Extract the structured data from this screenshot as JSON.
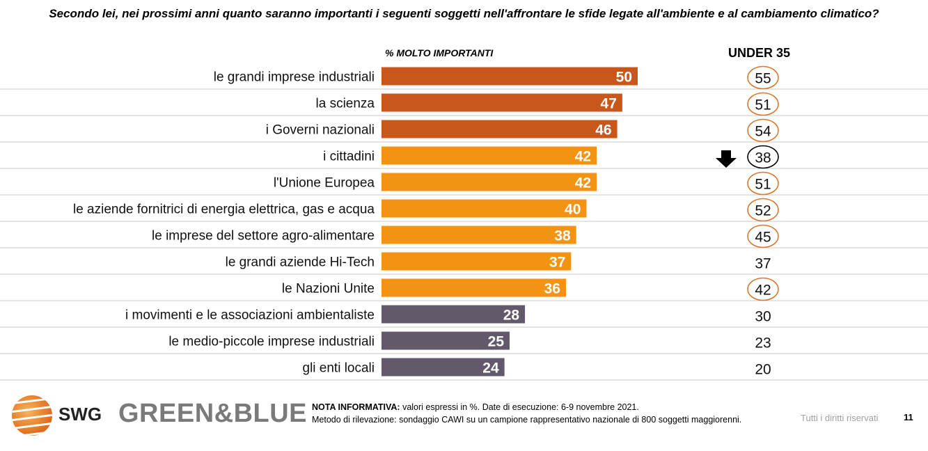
{
  "question": "Secondo lei, nei prossimi anni quanto saranno importanti i seguenti soggetti nell'affrontare le sfide legate all'ambiente e al cambiamento climatico?",
  "column_header": "% MOLTO IMPORTANTI",
  "under_header": "UNDER 35",
  "colors": {
    "top_group": "#C8571B",
    "middle_group": "#F39314",
    "bottom_group": "#625A6B",
    "circle_orange": "#D8772D",
    "circle_black": "#000000",
    "row_separator": "#C8C8C8"
  },
  "chart_data": {
    "type": "bar",
    "orientation": "horizontal",
    "title": "Secondo lei, nei prossimi anni quanto saranno importanti i seguenti soggetti nell'affrontare le sfide legate all'ambiente e al cambiamento climatico?",
    "categories": [
      "le grandi imprese industriali",
      "la scienza",
      "i Governi nazionali",
      "i cittadini",
      "l'Unione Europea",
      "le aziende fornitrici di energia elettrica, gas e acqua",
      "le imprese del settore agro-alimentare",
      "le grandi aziende Hi-Tech",
      "le Nazioni Unite",
      "i movimenti e le associazioni ambientaliste",
      "le medio-piccole imprese industriali",
      "gli enti locali"
    ],
    "series": [
      {
        "name": "% MOLTO IMPORTANTI",
        "values": [
          50,
          47,
          46,
          42,
          42,
          40,
          38,
          37,
          36,
          28,
          25,
          24
        ],
        "groups": [
          "top",
          "top",
          "top",
          "middle",
          "middle",
          "middle",
          "middle",
          "middle",
          "middle",
          "bottom",
          "bottom",
          "bottom"
        ]
      },
      {
        "name": "UNDER 35",
        "values": [
          55,
          51,
          54,
          38,
          51,
          52,
          45,
          37,
          42,
          30,
          23,
          20
        ],
        "marker": [
          "circle-orange",
          "circle-orange",
          "circle-orange",
          "circle-black",
          "circle-orange",
          "circle-orange",
          "circle-orange",
          "none",
          "circle-orange",
          "none",
          "none",
          "none"
        ]
      }
    ],
    "xlim": [
      0,
      100
    ],
    "grid": false,
    "legend": "none"
  },
  "footer": {
    "note_label": "NOTA INFORMATIVA:",
    "note_text": " valori espressi in %. Date di esecuzione: 6-9 novembre 2021.",
    "method_text": "Metodo di rilevazione: sondaggio CAWI su un campione rappresentativo nazionale di 800 soggetti maggiorenni.",
    "rights": "Tutti i diritti riservati",
    "page_number": "11"
  },
  "logos": {
    "swg": "SWG",
    "greenblue": "GREEN&BLUE"
  },
  "icons": {
    "down_arrow": "down-arrow-icon",
    "swg_logo": "swg-logo-icon"
  }
}
